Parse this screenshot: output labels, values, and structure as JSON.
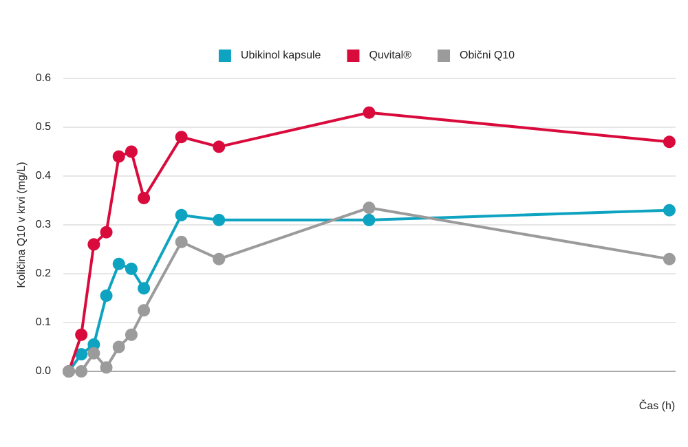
{
  "chart_data": {
    "type": "line",
    "x_label": "Čas (h)",
    "y_label": "Količina Q10 v krvi (mg/L)",
    "x": [
      0,
      0.5,
      1,
      1.5,
      2,
      2.5,
      3,
      4.5,
      6,
      12,
      24
    ],
    "xlim": [
      -0.22,
      24.25
    ],
    "ylim": [
      0,
      0.6
    ],
    "yticks": [
      {
        "value": 0,
        "label": "0.0"
      },
      0.1,
      0.2,
      0.3,
      0.4,
      0.5,
      0.6
    ],
    "grid": true,
    "legend": "top",
    "series": [
      {
        "name": "Ubikinol kapsule",
        "color": "#0ea3c0",
        "values": [
          0,
          0.035,
          0.055,
          0.155,
          0.22,
          0.21,
          0.17,
          0.32,
          0.31,
          0.31,
          0.33
        ]
      },
      {
        "name": "Quvital®",
        "color": "#d80b3c",
        "values": [
          0,
          0.075,
          0.26,
          0.285,
          0.44,
          0.45,
          0.355,
          0.48,
          0.46,
          0.53,
          0.47
        ]
      },
      {
        "name": "Obični Q10",
        "color": "#9b9b9b",
        "values": [
          0,
          0.0,
          0.037,
          0.008,
          0.05,
          0.075,
          0.125,
          0.265,
          0.23,
          0.335,
          0.23
        ]
      }
    ]
  }
}
